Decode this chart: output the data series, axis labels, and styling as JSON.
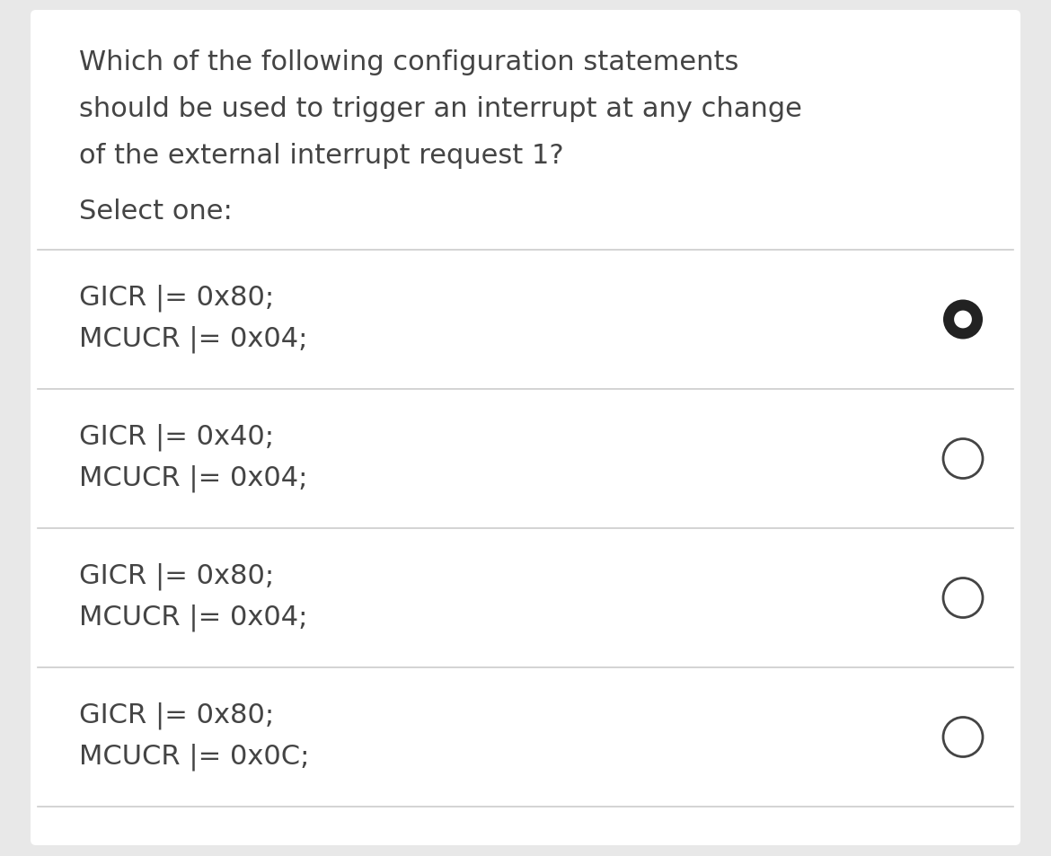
{
  "background_color": "#e8e8e8",
  "card_color": "#ffffff",
  "question_lines": [
    "Which of the following configuration statements",
    "should be used to trigger an interrupt at any change",
    "of the external interrupt request 1?"
  ],
  "select_one": "Select one:",
  "options": [
    {
      "line1": "GICR |= 0x80;",
      "line2": "MCUCR |= 0x04;",
      "selected": true
    },
    {
      "line1": "GICR |= 0x40;",
      "line2": "MCUCR |= 0x04;",
      "selected": false
    },
    {
      "line1": "GICR |= 0x80;",
      "line2": "MCUCR |= 0x04;",
      "selected": false
    },
    {
      "line1": "GICR |= 0x80;",
      "line2": "MCUCR |= 0x0C;",
      "selected": false
    }
  ],
  "text_color": "#444444",
  "line_color": "#cccccc",
  "circle_edge_color": "#444444",
  "selected_fill": "#222222",
  "unselected_fill": "#ffffff",
  "question_fontsize": 22,
  "option_fontsize": 22,
  "select_one_fontsize": 22
}
